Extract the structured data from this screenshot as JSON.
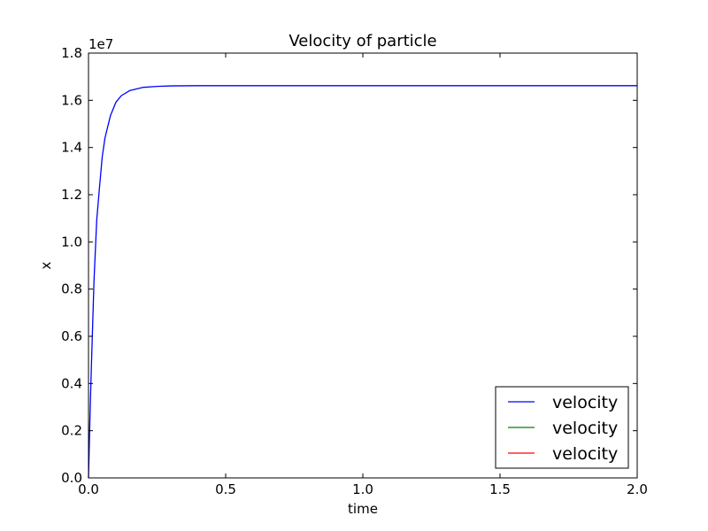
{
  "chart_data": {
    "type": "line",
    "title": "Velocity of particle",
    "xlabel": "time",
    "ylabel": "x",
    "xlim": [
      0.0,
      2.0
    ],
    "ylim": [
      0.0,
      1.8
    ],
    "y_offset_label": "1e7",
    "xticks": [
      0.0,
      0.5,
      1.0,
      1.5,
      2.0
    ],
    "xtick_labels": [
      "0.0",
      "0.5",
      "1.0",
      "1.5",
      "2.0"
    ],
    "yticks": [
      0.0,
      0.2,
      0.4,
      0.6,
      0.8,
      1.0,
      1.2,
      1.4,
      1.6,
      1.8
    ],
    "ytick_labels": [
      "0.0",
      "0.2",
      "0.4",
      "0.6",
      "0.8",
      "1.0",
      "1.2",
      "1.4",
      "1.6",
      "1.8"
    ],
    "grid": false,
    "legend_position": "lower-right",
    "series": [
      {
        "name": "velocity",
        "color": "#0000ff",
        "x": [
          0.0,
          0.005,
          0.01,
          0.02,
          0.03,
          0.04,
          0.05,
          0.06,
          0.08,
          0.1,
          0.12,
          0.15,
          0.2,
          0.25,
          0.3,
          0.4,
          0.5,
          0.75,
          1.0,
          1.25,
          1.5,
          1.75,
          2.0
        ],
        "y": [
          0.0,
          0.238,
          0.452,
          0.834,
          1.093,
          1.23,
          1.36,
          1.44,
          1.535,
          1.592,
          1.62,
          1.641,
          1.655,
          1.659,
          1.661,
          1.662,
          1.662,
          1.662,
          1.662,
          1.662,
          1.662,
          1.662,
          1.662
        ]
      },
      {
        "name": "velocity",
        "color": "#008000",
        "x": [],
        "y": []
      },
      {
        "name": "velocity",
        "color": "#ff0000",
        "x": [],
        "y": []
      }
    ]
  }
}
